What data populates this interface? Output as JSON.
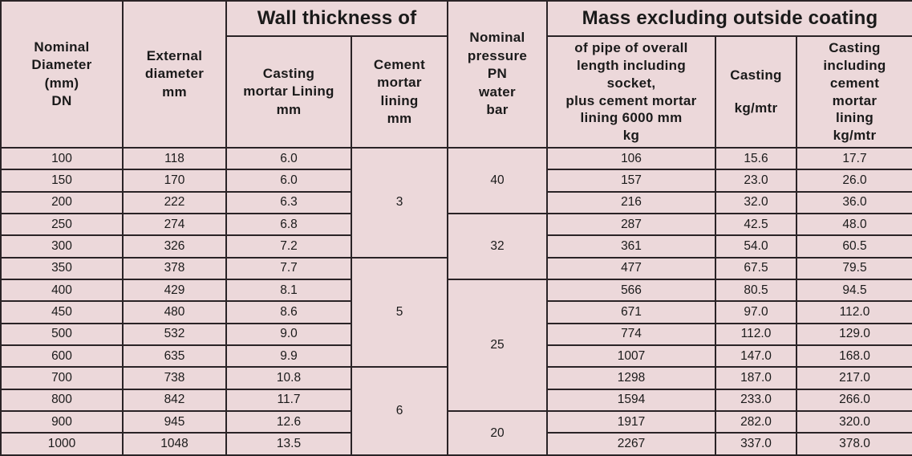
{
  "headers": {
    "nominal_diameter": [
      "Nominal",
      "Diameter",
      "(mm)",
      "DN"
    ],
    "external_diameter": [
      "External",
      "diameter",
      "mm"
    ],
    "wall_thickness": "Wall thickness of",
    "casting_mortar": [
      "Casting",
      "mortar Lining",
      "mm"
    ],
    "cement_mortar": [
      "Cement",
      "mortar",
      "lining",
      "mm"
    ],
    "nominal_pressure": [
      "Nominal",
      "pressure",
      "PN",
      "water",
      "bar"
    ],
    "mass": "Mass excluding outside coating",
    "mass_pipe": [
      "of pipe of overall",
      "length including",
      "socket,",
      "plus cement mortar",
      "lining 6000 mm",
      "kg"
    ],
    "mass_casting": [
      "Casting",
      "kg/mtr"
    ],
    "mass_casting_lining": [
      "Casting",
      "including",
      "cement",
      "mortar",
      "lining",
      "kg/mtr"
    ]
  },
  "rows": [
    {
      "dn": "100",
      "ext": "118",
      "wall": "6.0",
      "pipe": "106",
      "cast": "15.6",
      "lined": "17.7"
    },
    {
      "dn": "150",
      "ext": "170",
      "wall": "6.0",
      "pipe": "157",
      "cast": "23.0",
      "lined": "26.0"
    },
    {
      "dn": "200",
      "ext": "222",
      "wall": "6.3",
      "pipe": "216",
      "cast": "32.0",
      "lined": "36.0"
    },
    {
      "dn": "250",
      "ext": "274",
      "wall": "6.8",
      "pipe": "287",
      "cast": "42.5",
      "lined": "48.0"
    },
    {
      "dn": "300",
      "ext": "326",
      "wall": "7.2",
      "pipe": "361",
      "cast": "54.0",
      "lined": "60.5"
    },
    {
      "dn": "350",
      "ext": "378",
      "wall": "7.7",
      "pipe": "477",
      "cast": "67.5",
      "lined": "79.5"
    },
    {
      "dn": "400",
      "ext": "429",
      "wall": "8.1",
      "pipe": "566",
      "cast": "80.5",
      "lined": "94.5"
    },
    {
      "dn": "450",
      "ext": "480",
      "wall": "8.6",
      "pipe": "671",
      "cast": "97.0",
      "lined": "112.0"
    },
    {
      "dn": "500",
      "ext": "532",
      "wall": "9.0",
      "pipe": "774",
      "cast": "112.0",
      "lined": "129.0"
    },
    {
      "dn": "600",
      "ext": "635",
      "wall": "9.9",
      "pipe": "1007",
      "cast": "147.0",
      "lined": "168.0"
    },
    {
      "dn": "700",
      "ext": "738",
      "wall": "10.8",
      "pipe": "1298",
      "cast": "187.0",
      "lined": "217.0"
    },
    {
      "dn": "800",
      "ext": "842",
      "wall": "11.7",
      "pipe": "1594",
      "cast": "233.0",
      "lined": "266.0"
    },
    {
      "dn": "900",
      "ext": "945",
      "wall": "12.6",
      "pipe": "1917",
      "cast": "282.0",
      "lined": "320.0"
    },
    {
      "dn": "1000",
      "ext": "1048",
      "wall": "13.5",
      "pipe": "2267",
      "cast": "337.0",
      "lined": "378.0"
    }
  ],
  "cement_groups": [
    {
      "value": "3",
      "rows": 5
    },
    {
      "value": "5",
      "rows": 5
    },
    {
      "value": "6",
      "rows": 4
    }
  ],
  "pressure_groups": [
    {
      "value": "40",
      "rows": 3
    },
    {
      "value": "32",
      "rows": 3
    },
    {
      "value": "25",
      "rows": 6
    },
    {
      "value": "20",
      "rows": 2
    }
  ]
}
